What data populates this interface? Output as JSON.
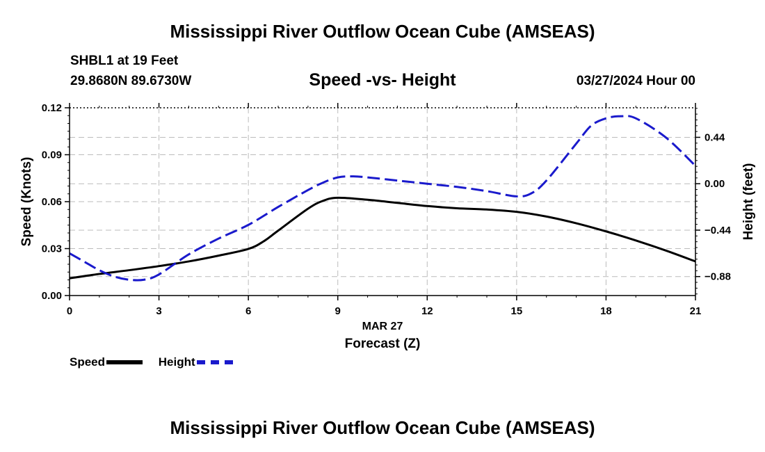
{
  "header": {
    "title": "Mississippi River Outflow Ocean Cube (AMSEAS)",
    "station": "SHBL1 at 19 Feet",
    "coordinates": "29.8680N  89.6730W",
    "subtitle": "Speed -vs- Height",
    "datetime": "03/27/2024 Hour 00"
  },
  "footer": {
    "title": "Mississippi River Outflow Ocean Cube (AMSEAS)"
  },
  "legend": {
    "speed_label": "Speed",
    "height_label": "Height"
  },
  "colors": {
    "speed": "#000000",
    "height": "#1a1acc",
    "grid": "#bbbbbb"
  },
  "chart_data": {
    "type": "line",
    "title": "Speed -vs- Height",
    "xlabel": "Forecast (Z)",
    "x_date_label": "MAR 27",
    "ylabel": "Speed (Knots)",
    "y2label": "Height (feet)",
    "xlim": [
      0,
      21
    ],
    "ylim": [
      0,
      0.12
    ],
    "y2lim": [
      -1.06,
      0.72
    ],
    "grid": true,
    "legend_position": "bottom-left",
    "x_ticks": [
      0,
      3,
      6,
      9,
      12,
      15,
      18,
      21
    ],
    "x_tick_labels": [
      "0",
      "3",
      "6",
      "9",
      "12",
      "15",
      "18",
      "21"
    ],
    "y_ticks": [
      0,
      0.03,
      0.06,
      0.09,
      0.12
    ],
    "y_tick_labels": [
      "0.00",
      "0.03",
      "0.06",
      "0.09",
      "0.12"
    ],
    "y2_ticks": [
      -0.88,
      -0.44,
      0,
      0.44
    ],
    "y2_tick_labels": [
      "−0.88",
      "−0.44",
      "0.00",
      "0.44"
    ],
    "series": [
      {
        "name": "Speed",
        "axis": "left",
        "x": [
          0,
          1,
          2,
          3,
          4,
          5,
          6,
          6.5,
          7,
          8,
          8.5,
          9,
          10,
          11,
          12,
          13,
          14,
          15,
          16,
          17,
          18,
          19,
          20,
          21
        ],
        "values": [
          0.011,
          0.0138,
          0.0162,
          0.0188,
          0.0218,
          0.0255,
          0.0298,
          0.0345,
          0.0415,
          0.0555,
          0.0605,
          0.0625,
          0.0612,
          0.0592,
          0.0572,
          0.0558,
          0.055,
          0.0535,
          0.0505,
          0.0462,
          0.041,
          0.0352,
          0.0288,
          0.0218
        ]
      },
      {
        "name": "Height",
        "axis": "right",
        "x": [
          0,
          0.5,
          1,
          1.5,
          2,
          2.5,
          3,
          4,
          5,
          6,
          7,
          8,
          8.5,
          9,
          9.5,
          10,
          11,
          12,
          13,
          14,
          15,
          15.5,
          16,
          17,
          17.5,
          18,
          18.5,
          19,
          20,
          21
        ],
        "values": [
          -0.66,
          -0.74,
          -0.82,
          -0.88,
          -0.91,
          -0.91,
          -0.86,
          -0.67,
          -0.52,
          -0.39,
          -0.22,
          -0.06,
          0.01,
          0.06,
          0.07,
          0.06,
          0.03,
          0.0,
          -0.03,
          -0.07,
          -0.12,
          -0.09,
          0.03,
          0.38,
          0.55,
          0.62,
          0.64,
          0.62,
          0.44,
          0.17
        ]
      }
    ]
  }
}
